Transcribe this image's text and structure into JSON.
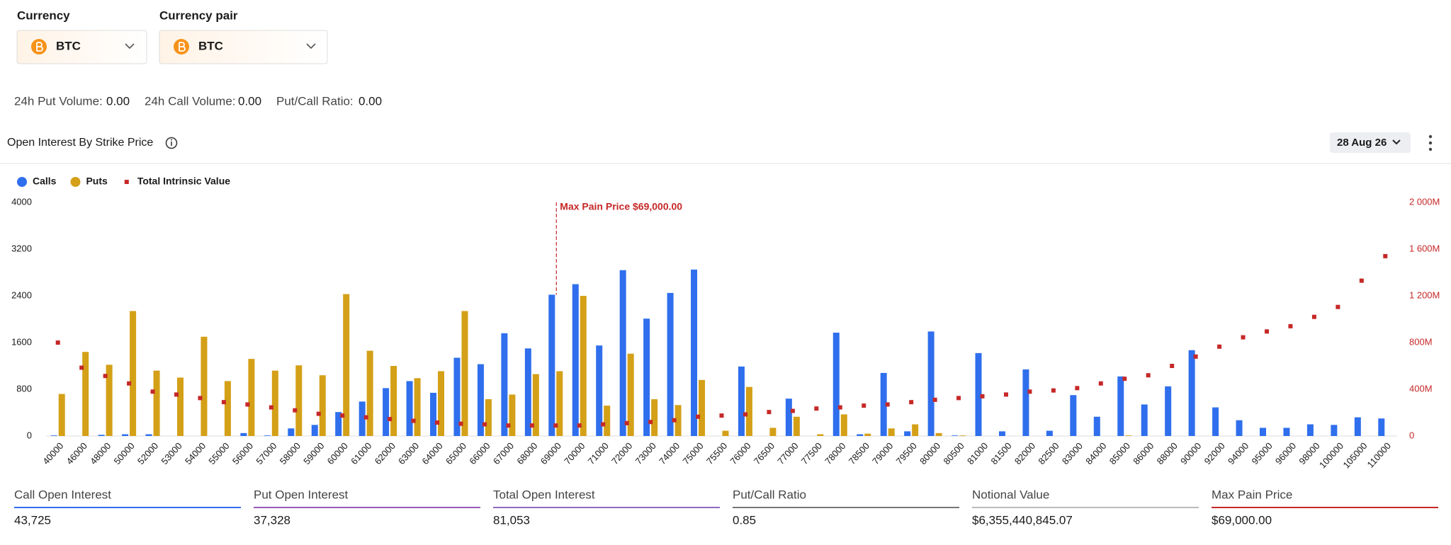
{
  "filters": {
    "currency": {
      "label": "Currency",
      "value": "BTC"
    },
    "currency_pair": {
      "label": "Currency pair",
      "value": "BTC"
    }
  },
  "stats": [
    {
      "label": "24h Put Volume:",
      "value": "0.00"
    },
    {
      "label": "24h Call Volume:",
      "value": "0.00"
    },
    {
      "label": "Put/Call Ratio:",
      "value": "0.00"
    }
  ],
  "section": {
    "title": "Open Interest By Strike Price",
    "date": "28 Aug 26"
  },
  "chart_data": {
    "type": "bar",
    "categories": [
      "40000",
      "46000",
      "48000",
      "50000",
      "52000",
      "53000",
      "54000",
      "55000",
      "56000",
      "57000",
      "58000",
      "59000",
      "60000",
      "61000",
      "62000",
      "63000",
      "64000",
      "65000",
      "66000",
      "67000",
      "68000",
      "69000",
      "70000",
      "71000",
      "72000",
      "73000",
      "74000",
      "75000",
      "75500",
      "76000",
      "76500",
      "77000",
      "77500",
      "78000",
      "78500",
      "79000",
      "79500",
      "80000",
      "80500",
      "81000",
      "81500",
      "82000",
      "82500",
      "83000",
      "84000",
      "85000",
      "86000",
      "88000",
      "90000",
      "92000",
      "94000",
      "95000",
      "96000",
      "98000",
      "100000",
      "105000",
      "110000"
    ],
    "series": [
      {
        "name": "Calls",
        "color": "#2f6fed",
        "values": [
          10,
          0,
          20,
          30,
          30,
          0,
          0,
          0,
          50,
          10,
          130,
          190,
          410,
          590,
          820,
          940,
          740,
          1340,
          1230,
          1760,
          1500,
          2420,
          2600,
          1550,
          2840,
          2010,
          2450,
          2850,
          0,
          1190,
          0,
          640,
          0,
          1770,
          30,
          1080,
          80,
          1790,
          10,
          1420,
          80,
          1140,
          90,
          700,
          330,
          1020,
          540,
          850,
          1470,
          490,
          270,
          140,
          140,
          200,
          190,
          320,
          300
        ]
      },
      {
        "name": "Puts",
        "color": "#d4a017",
        "values": [
          720,
          1440,
          1220,
          2140,
          1120,
          1000,
          1700,
          940,
          1320,
          1120,
          1210,
          1040,
          2430,
          1460,
          1200,
          990,
          1110,
          2140,
          630,
          710,
          1060,
          1110,
          2400,
          520,
          1410,
          630,
          530,
          960,
          90,
          840,
          140,
          330,
          30,
          370,
          40,
          130,
          200,
          50,
          10,
          0,
          0,
          0,
          0,
          0,
          0,
          10,
          0,
          0,
          0,
          0,
          0,
          0,
          0,
          0,
          0,
          0,
          0
        ]
      },
      {
        "name": "Total Intrinsic Value",
        "color": "#c62828",
        "type": "scatter",
        "axis": "y2",
        "values": [
          800000000,
          585000000,
          514000000,
          450000000,
          380000000,
          355000000,
          325000000,
          290000000,
          270000000,
          245000000,
          220000000,
          190000000,
          175000000,
          160000000,
          145000000,
          130000000,
          115000000,
          105000000,
          100000000,
          90000000,
          90000000,
          90000000,
          90000000,
          100000000,
          110000000,
          120000000,
          135000000,
          165000000,
          175000000,
          185000000,
          205000000,
          215000000,
          235000000,
          245000000,
          260000000,
          270000000,
          290000000,
          310000000,
          325000000,
          340000000,
          355000000,
          380000000,
          390000000,
          410000000,
          450000000,
          490000000,
          520000000,
          600000000,
          680000000,
          765000000,
          845000000,
          895000000,
          940000000,
          1020000000,
          1105000000,
          1330000000,
          1540000000
        ]
      }
    ],
    "ylim": [
      0,
      4000
    ],
    "yticks": [
      0,
      800,
      1600,
      2400,
      3200,
      4000
    ],
    "y2lim": [
      0,
      2000000000
    ],
    "y2ticks": [
      0,
      {
        "value": 400000000,
        "label": "400M"
      },
      {
        "value": 800000000,
        "label": "800M"
      },
      {
        "value": 1200000000,
        "label": "1 200M"
      },
      {
        "value": 1600000000,
        "label": "1 600M"
      },
      {
        "value": 2000000000,
        "label": "2 000M"
      }
    ],
    "annotation": {
      "text": "Max Pain Price $69,000.00",
      "value": 69000
    },
    "legend": "top-left",
    "grid": false
  },
  "summary": [
    {
      "label": "Call Open Interest",
      "value": "43,725",
      "color": "#2f6fed"
    },
    {
      "label": "Put Open Interest",
      "value": "37,328",
      "color": "#9b59b6"
    },
    {
      "label": "Total Open Interest",
      "value": "81,053",
      "color": "#8e6bbf"
    },
    {
      "label": "Put/Call Ratio",
      "value": "0.85",
      "color": "#777777"
    },
    {
      "label": "Notional Value",
      "value": "$6,355,440,845.07",
      "color": "#bbbbbb"
    },
    {
      "label": "Max Pain Price",
      "value": "$69,000.00",
      "color": "#c62828"
    }
  ]
}
